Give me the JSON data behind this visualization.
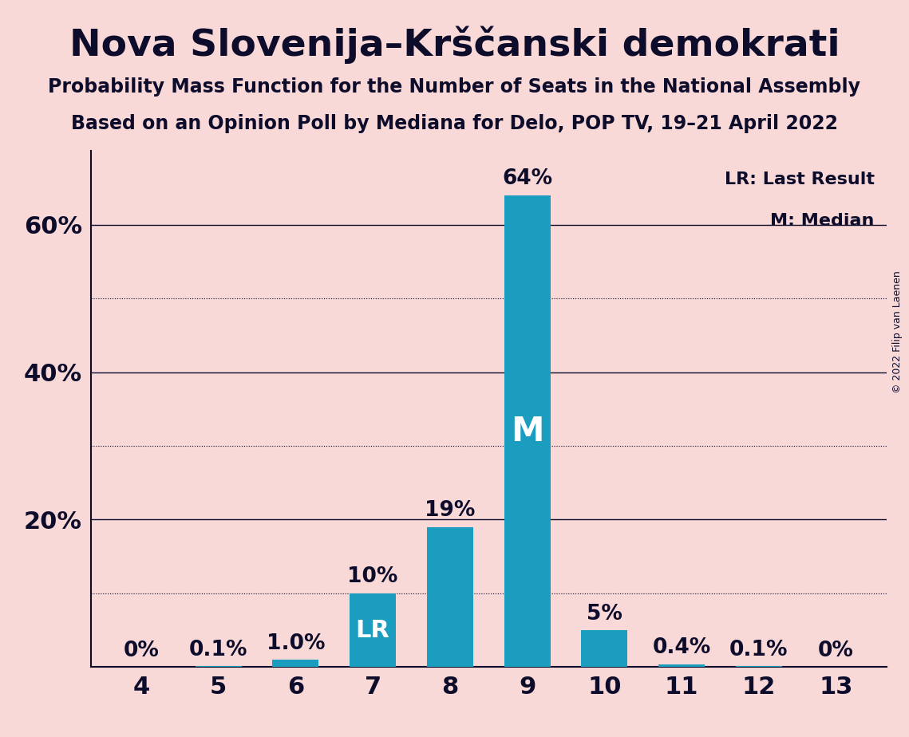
{
  "title": "Nova Slovenija–Krščanski demokrati",
  "subtitle1": "Probability Mass Function for the Number of Seats in the National Assembly",
  "subtitle2": "Based on an Opinion Poll by Mediana for Delo, POP TV, 19–21 April 2022",
  "copyright": "© 2022 Filip van Laenen",
  "categories": [
    4,
    5,
    6,
    7,
    8,
    9,
    10,
    11,
    12,
    13
  ],
  "values": [
    0.0,
    0.1,
    1.0,
    10.0,
    19.0,
    64.0,
    5.0,
    0.4,
    0.1,
    0.0
  ],
  "bar_color": "#1a9dbf",
  "background_color": "#f9d8d8",
  "label_texts": [
    "0%",
    "0.1%",
    "1.0%",
    "10%",
    "19%",
    "64%",
    "5%",
    "0.4%",
    "0.1%",
    "0%"
  ],
  "lr_index": 3,
  "median_index": 5,
  "median_label": "M",
  "lr_label": "LR",
  "legend_lr": "LR: Last Result",
  "legend_m": "M: Median",
  "ylim": [
    0,
    70
  ],
  "yticks": [
    20,
    40,
    60
  ],
  "ytick_labels": [
    "20%",
    "40%",
    "60%"
  ],
  "major_gridlines": [
    20,
    40,
    60
  ],
  "minor_gridlines": [
    10,
    30,
    50
  ],
  "text_color": "#0d0d2b",
  "bar_label_color_outside": "#0d0d2b",
  "bar_label_color_inside": "#ffffff"
}
